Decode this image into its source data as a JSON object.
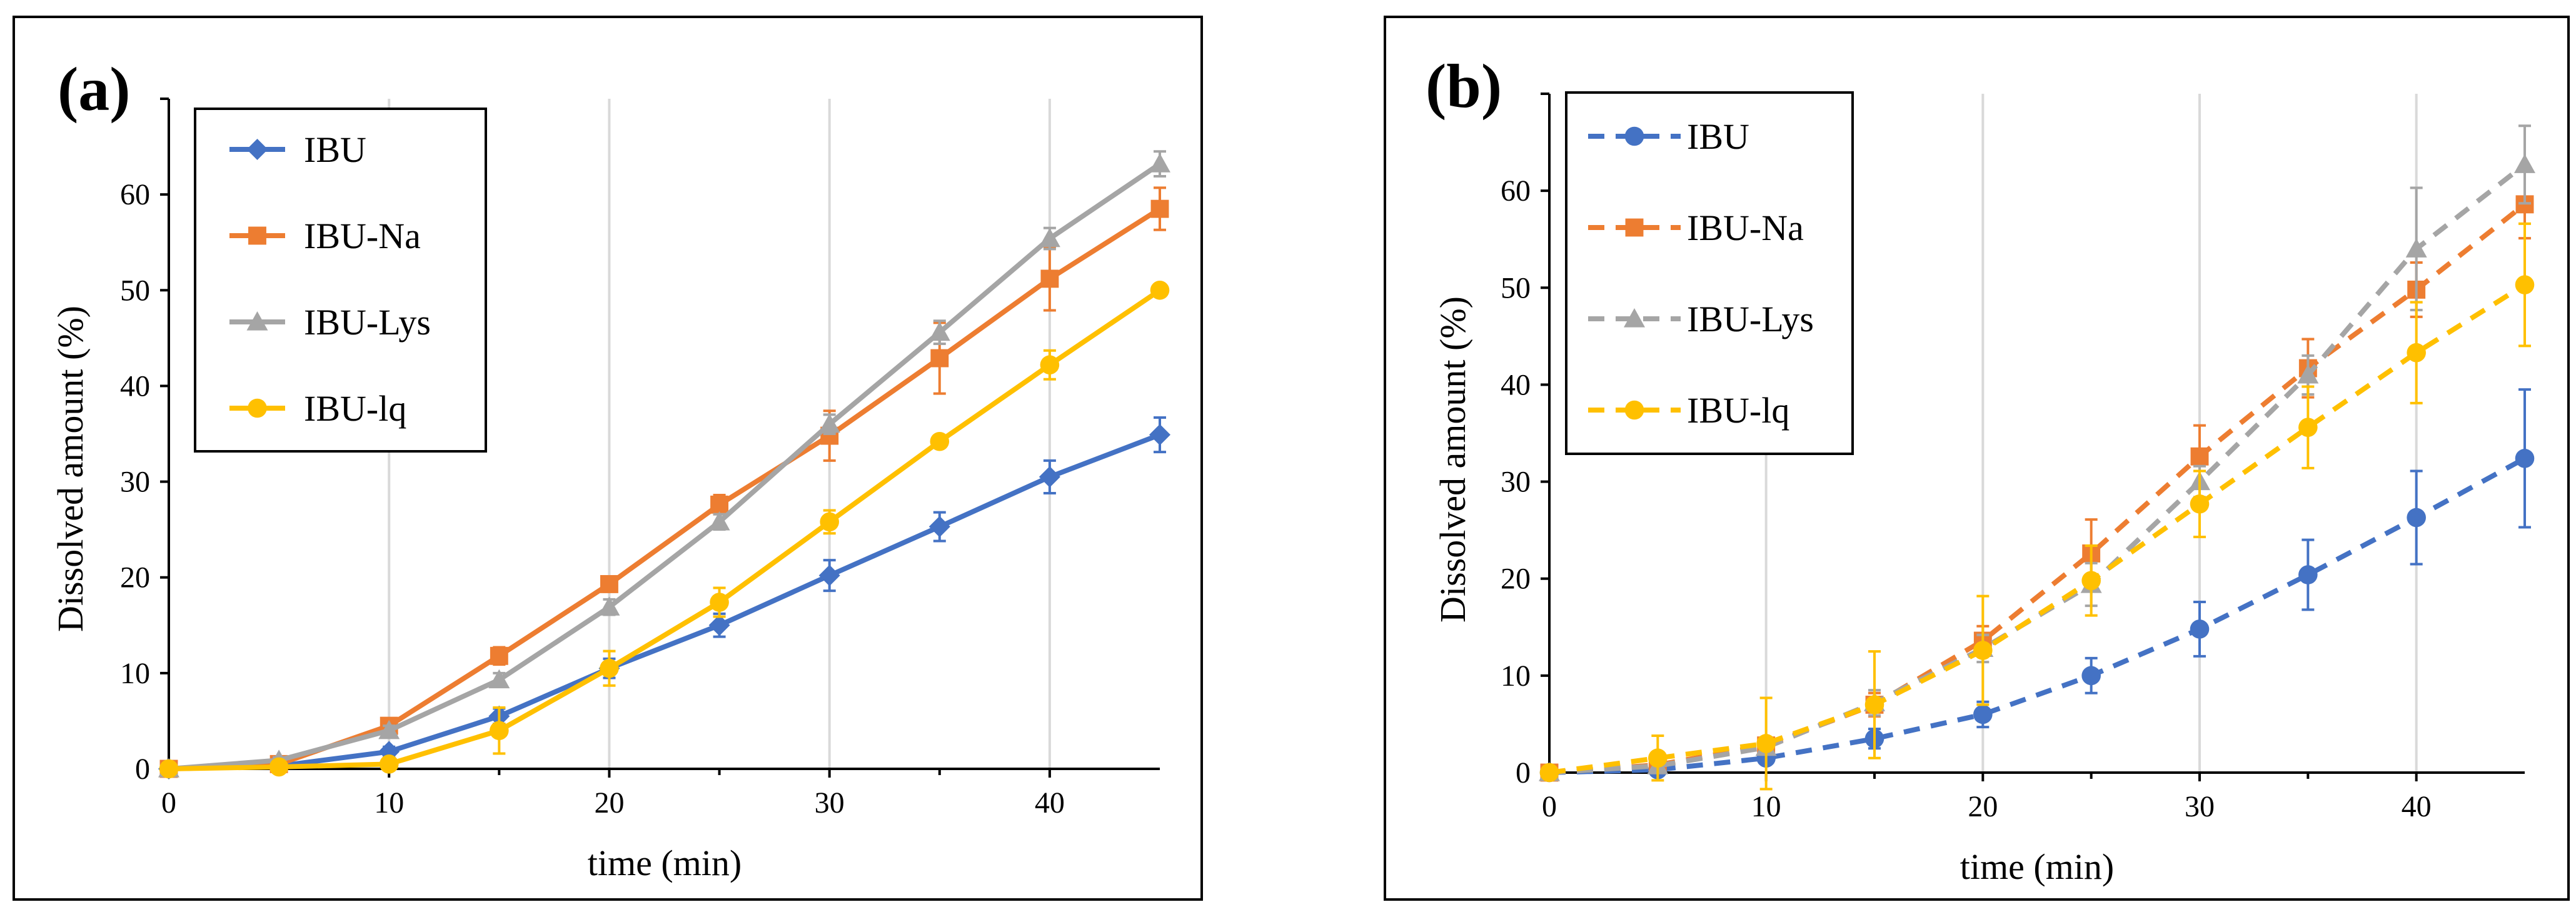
{
  "chart_data": [
    {
      "type": "line",
      "panel_label": "(a)",
      "line_style": "solid",
      "xlabel": "time (min)",
      "ylabel": "Dissolved amount (%)",
      "xlim": [
        0,
        45
      ],
      "ylim": [
        0,
        70
      ],
      "x_ticks": [
        0,
        10,
        20,
        30,
        40
      ],
      "y_ticks": [
        0,
        10,
        20,
        30,
        40,
        50,
        60
      ],
      "grid": "vertical",
      "legend_position": "top-left",
      "x": [
        0,
        5,
        10,
        15,
        20,
        25,
        30,
        35,
        40,
        45
      ],
      "series": [
        {
          "name": "IBU",
          "color": "#4472c4",
          "marker": "diamond",
          "values": [
            0,
            0.3,
            1.8,
            5.5,
            10.5,
            15,
            20.2,
            25.3,
            30.5,
            34.9
          ],
          "errors": [
            0,
            0.3,
            0.5,
            0.8,
            1.0,
            1.2,
            1.6,
            1.5,
            1.7,
            1.8
          ]
        },
        {
          "name": "IBU-Na",
          "color": "#ed7d31",
          "marker": "square",
          "values": [
            0,
            0.5,
            4.5,
            11.8,
            19.3,
            27.6,
            34.8,
            42.9,
            51.2,
            58.5
          ],
          "errors": [
            0,
            0.3,
            0.6,
            0.9,
            0.8,
            1.0,
            2.6,
            3.7,
            3.3,
            2.2
          ]
        },
        {
          "name": "IBU-Lys",
          "color": "#a5a5a5",
          "marker": "triangle",
          "values": [
            0,
            0.9,
            4.0,
            9.3,
            16.9,
            25.8,
            36.0,
            45.6,
            55.4,
            63.2
          ],
          "errors": [
            0,
            0.3,
            0.5,
            0.7,
            0.8,
            0.8,
            1.0,
            1.2,
            1.1,
            1.3
          ]
        },
        {
          "name": "IBU-lq",
          "color": "#ffc000",
          "marker": "circle",
          "values": [
            0,
            0.2,
            0.5,
            4.0,
            10.5,
            17.4,
            25.8,
            34.2,
            42.2,
            50.0
          ],
          "errors": [
            0,
            0.2,
            0.4,
            2.4,
            1.8,
            1.5,
            1.2,
            0.6,
            1.5,
            0.5
          ]
        }
      ]
    },
    {
      "type": "line",
      "panel_label": "(b)",
      "line_style": "dashed",
      "xlabel": "time (min)",
      "ylabel": "Dissolved amount (%)",
      "xlim": [
        0,
        45
      ],
      "ylim": [
        0,
        70
      ],
      "x_ticks": [
        0,
        10,
        20,
        30,
        40
      ],
      "y_ticks": [
        0,
        10,
        20,
        30,
        40,
        50,
        60
      ],
      "grid": "vertical",
      "legend_position": "top-left",
      "x": [
        0,
        5,
        10,
        15,
        20,
        25,
        30,
        35,
        40,
        45
      ],
      "series": [
        {
          "name": "IBU",
          "color": "#4472c4",
          "marker": "circle",
          "values": [
            0,
            0.3,
            1.5,
            3.5,
            6.0,
            10.0,
            14.8,
            20.4,
            26.3,
            32.4
          ],
          "errors": [
            0,
            0.3,
            0.5,
            1.0,
            1.3,
            1.8,
            2.8,
            3.6,
            4.8,
            7.1
          ]
        },
        {
          "name": "IBU-Na",
          "color": "#ed7d31",
          "marker": "square",
          "values": [
            0,
            0.8,
            2.8,
            7.0,
            13.6,
            22.6,
            32.6,
            41.7,
            49.8,
            58.6
          ],
          "errors": [
            0,
            0.4,
            0.8,
            1.2,
            1.5,
            3.5,
            3.2,
            3.0,
            2.8,
            3.5
          ]
        },
        {
          "name": "IBU-Lys",
          "color": "#a5a5a5",
          "marker": "triangle",
          "values": [
            0,
            0.7,
            2.6,
            7.2,
            12.8,
            19.4,
            30.0,
            41.0,
            54.0,
            62.7
          ],
          "errors": [
            0,
            0.4,
            0.7,
            1.3,
            1.4,
            2.2,
            1.6,
            2.0,
            6.3,
            4.0
          ]
        },
        {
          "name": "IBU-lq",
          "color": "#ffc000",
          "marker": "circle",
          "values": [
            0,
            1.5,
            3.0,
            7.0,
            12.6,
            19.8,
            27.7,
            35.6,
            43.3,
            50.3
          ],
          "errors": [
            0,
            2.3,
            4.7,
            5.5,
            5.6,
            3.6,
            3.4,
            4.2,
            5.2,
            6.3
          ]
        }
      ]
    }
  ]
}
